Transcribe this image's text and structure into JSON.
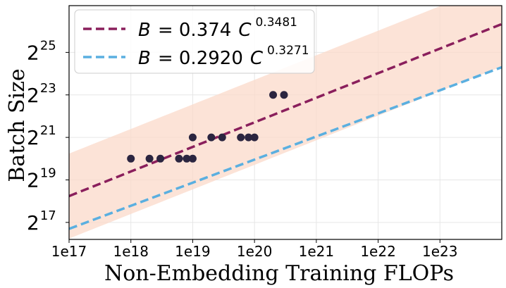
{
  "chart_data": {
    "type": "scatter",
    "title": "",
    "xlabel": "Non-Embedding Training FLOPs",
    "ylabel": "Batch Size",
    "x_scale": "log10",
    "y_scale": "log2",
    "xlim": [
      1e+17,
      1e+24
    ],
    "ylim_log2": [
      16.2,
      27.2
    ],
    "x_ticks": [
      "1e17",
      "1e18",
      "1e19",
      "1e20",
      "1e21",
      "1e22",
      "1e23"
    ],
    "y_ticks": [
      {
        "base": "2",
        "exp": "17"
      },
      {
        "base": "2",
        "exp": "19"
      },
      {
        "base": "2",
        "exp": "21"
      },
      {
        "base": "2",
        "exp": "23"
      },
      {
        "base": "2",
        "exp": "25"
      }
    ],
    "grid": true,
    "legend_position": "top-left",
    "points": [
      {
        "x": 1e+18,
        "y": 1048576
      },
      {
        "x": 2e+18,
        "y": 1048576
      },
      {
        "x": 3e+18,
        "y": 1048576
      },
      {
        "x": 6e+18,
        "y": 1048576
      },
      {
        "x": 8e+18,
        "y": 1048576
      },
      {
        "x": 1e+19,
        "y": 1048576
      },
      {
        "x": 1e+19,
        "y": 2097152
      },
      {
        "x": 2e+19,
        "y": 2097152
      },
      {
        "x": 3e+19,
        "y": 2097152
      },
      {
        "x": 6e+19,
        "y": 2097152
      },
      {
        "x": 8e+19,
        "y": 2097152
      },
      {
        "x": 1e+20,
        "y": 2097152
      },
      {
        "x": 2e+20,
        "y": 8388608
      },
      {
        "x": 3e+20,
        "y": 8388608
      }
    ],
    "point_color": "#2b2540",
    "series": [
      {
        "legend_var": "B",
        "legend_eq": "= 0.374",
        "legend_var2": "C",
        "legend_exp": "0.3481",
        "coef": 0.374,
        "exponent": 0.3481,
        "color": "#8a1f5c",
        "dash": "dashed",
        "band_color": "#fbd9c9",
        "band_factor": 4
      },
      {
        "legend_var": "B",
        "legend_eq": "= 0.2920",
        "legend_var2": "C",
        "legend_exp": "0.3271",
        "coef": 0.292,
        "exponent": 0.3271,
        "color": "#5aafe0",
        "dash": "dashed"
      }
    ]
  }
}
